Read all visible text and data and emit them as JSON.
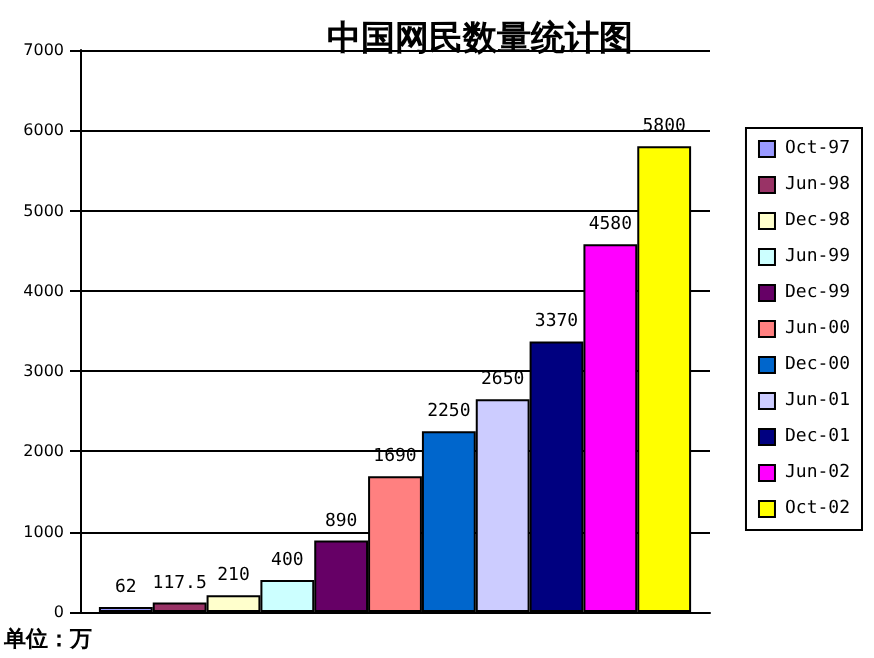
{
  "chart_data": {
    "type": "bar",
    "title": "中国网民数量统计图",
    "categories": [
      null
    ],
    "series": [
      {
        "name": "Oct-97",
        "color": "#9999ff",
        "values": [
          62
        ]
      },
      {
        "name": "Jun-98",
        "color": "#993366",
        "values": [
          117.5
        ]
      },
      {
        "name": "Dec-98",
        "color": "#ffffcc",
        "values": [
          210
        ]
      },
      {
        "name": "Jun-99",
        "color": "#ccffff",
        "values": [
          400
        ]
      },
      {
        "name": "Dec-99",
        "color": "#660066",
        "values": [
          890
        ]
      },
      {
        "name": "Jun-00",
        "color": "#ff8080",
        "values": [
          1690
        ]
      },
      {
        "name": "Dec-00",
        "color": "#0066cc",
        "values": [
          2250
        ]
      },
      {
        "name": "Jun-01",
        "color": "#ccccff",
        "values": [
          2650
        ]
      },
      {
        "name": "Dec-01",
        "color": "#000080",
        "values": [
          3370
        ]
      },
      {
        "name": "Jun-02",
        "color": "#ff00ff",
        "values": [
          4580
        ]
      },
      {
        "name": "Oct-02",
        "color": "#ffff00",
        "values": [
          5800
        ]
      }
    ],
    "ylim": [
      0,
      7000
    ],
    "yticks": [
      0,
      1000,
      2000,
      3000,
      4000,
      5000,
      6000,
      7000
    ],
    "grid": "y",
    "legend": "right",
    "data_labels": true,
    "annotations": [
      "单位：万"
    ]
  }
}
